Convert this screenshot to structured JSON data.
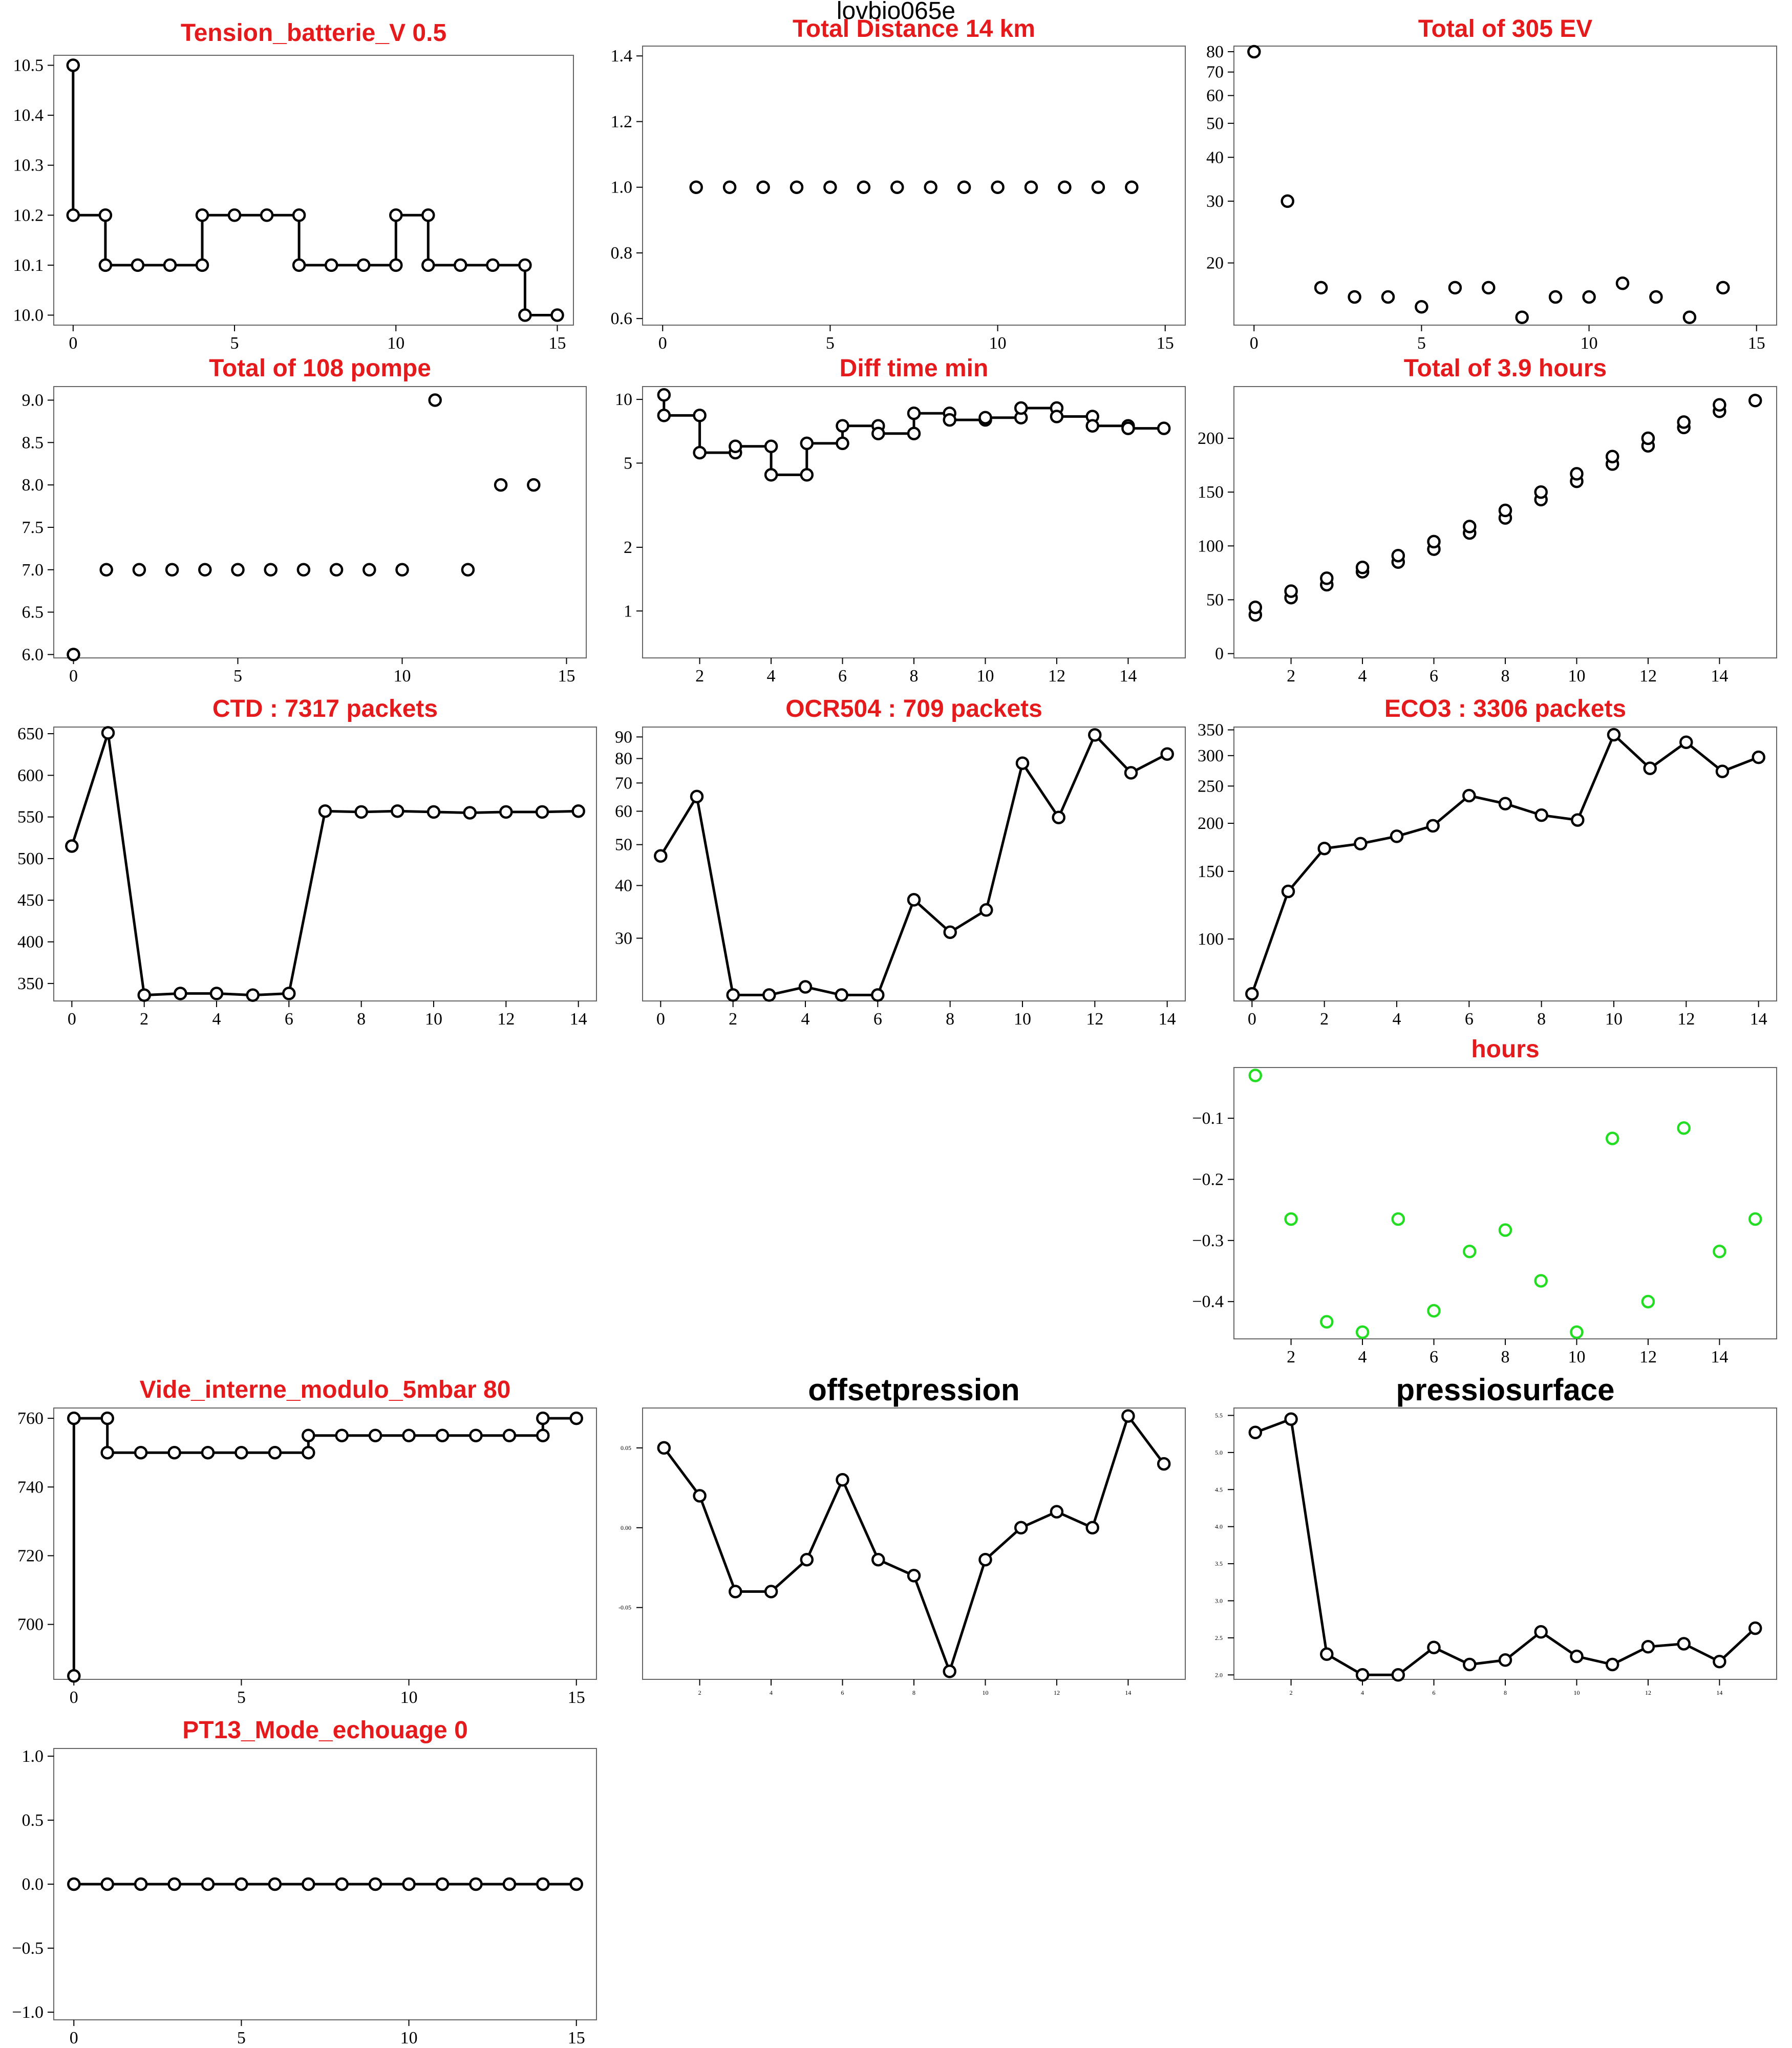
{
  "page_title": "lovbio065e",
  "colors": {
    "title": "#e41a1c",
    "hours_points": "#22dd22",
    "lines": "#000000"
  },
  "chart_data": [
    {
      "id": "tension",
      "type": "line",
      "step": true,
      "title": "Tension_batterie_V 0.5",
      "title_color": "red",
      "x": [
        0,
        0,
        1,
        1,
        2,
        3,
        4,
        4,
        5,
        6,
        7,
        7,
        8,
        9,
        10,
        10,
        11,
        11,
        12,
        13,
        14,
        14,
        15
      ],
      "y": [
        10.5,
        10.2,
        10.2,
        10.1,
        10.1,
        10.1,
        10.1,
        10.2,
        10.2,
        10.2,
        10.2,
        10.1,
        10.1,
        10.1,
        10.1,
        10.2,
        10.2,
        10.1,
        10.1,
        10.1,
        10.1,
        10.0,
        10.0
      ],
      "xlim": [
        -0.6,
        15.5
      ],
      "ylim": [
        9.98,
        10.52
      ],
      "xticks": [
        0,
        5,
        10,
        15
      ],
      "yticks": [
        10.0,
        10.1,
        10.2,
        10.3,
        10.4,
        10.5
      ],
      "yticklabels": [
        "10.0",
        "10.1",
        "10.2",
        "10.3",
        "10.4",
        "10.5"
      ]
    },
    {
      "id": "distance",
      "type": "scatter",
      "title": "Total Distance  14  km",
      "title_color": "red",
      "x": [
        1,
        2,
        3,
        4,
        5,
        6,
        7,
        8,
        9,
        10,
        11,
        12,
        13,
        14
      ],
      "y": [
        1,
        1,
        1,
        1,
        1,
        1,
        1,
        1,
        1,
        1,
        1,
        1,
        1,
        1
      ],
      "xlim": [
        -0.6,
        15.6
      ],
      "ylim": [
        0.58,
        1.43
      ],
      "xticks": [
        0,
        5,
        10,
        15
      ],
      "yticks": [
        0.6,
        0.8,
        1.0,
        1.2,
        1.4
      ],
      "yticklabels": [
        "0.6",
        "0.8",
        "1.0",
        "1.2",
        "1.4"
      ]
    },
    {
      "id": "ev",
      "type": "scatter",
      "log_y": true,
      "title": "Total of  305  EV",
      "title_color": "red",
      "x": [
        0,
        1,
        2,
        3,
        4,
        5,
        6,
        7,
        8,
        9,
        10,
        11,
        12,
        13,
        14
      ],
      "y": [
        80,
        30,
        17,
        16,
        16,
        15,
        17,
        17,
        14,
        16,
        16,
        17.5,
        16,
        14,
        17
      ],
      "xlim": [
        -0.6,
        15.6
      ],
      "ylim": [
        13.3,
        83
      ],
      "xticks": [
        0,
        5,
        10,
        15
      ],
      "yticks": [
        20,
        30,
        40,
        50,
        60,
        70,
        80
      ],
      "yticklabels": [
        "20",
        "30",
        "40",
        "50",
        "60",
        "70",
        "80"
      ]
    },
    {
      "id": "pompe",
      "type": "scatter",
      "title": "Total of  108  pompe",
      "title_color": "red",
      "x": [
        0,
        1,
        2,
        3,
        4,
        5,
        6,
        7,
        8,
        9,
        10,
        11,
        12,
        13,
        14
      ],
      "y": [
        6,
        7,
        7,
        7,
        7,
        7,
        7,
        7,
        7,
        7,
        7,
        9,
        7,
        8,
        8
      ],
      "xlim": [
        -0.6,
        15.6
      ],
      "ylim": [
        5.96,
        9.16
      ],
      "xticks": [
        0,
        5,
        10,
        15
      ],
      "yticks": [
        6.0,
        6.5,
        7.0,
        7.5,
        8.0,
        8.5,
        9.0
      ],
      "yticklabels": [
        "6.0",
        "6.5",
        "7.0",
        "7.5",
        "8.0",
        "8.5",
        "9.0"
      ]
    },
    {
      "id": "difftime",
      "type": "line",
      "step": true,
      "log_y": true,
      "title": "Diff time min",
      "title_color": "red",
      "x": [
        1,
        1,
        2,
        2,
        3,
        3,
        4,
        4,
        5,
        5,
        6,
        6,
        7,
        7,
        8,
        8,
        9,
        9,
        10,
        10,
        11,
        11,
        12,
        12,
        13,
        13,
        14,
        14,
        15
      ],
      "y": [
        10.5,
        8.4,
        8.4,
        5.6,
        5.6,
        6.0,
        6.0,
        4.4,
        4.4,
        6.2,
        6.2,
        7.5,
        7.5,
        6.9,
        6.9,
        8.6,
        8.6,
        8.0,
        8.0,
        8.2,
        8.2,
        9.1,
        9.1,
        8.3,
        8.3,
        7.5,
        7.5,
        7.3,
        7.3
      ],
      "xlim": [
        0.4,
        15.6
      ],
      "ylim": [
        0.6,
        11.5
      ],
      "xticks": [
        2,
        4,
        6,
        8,
        10,
        12,
        14
      ],
      "yticks": [
        1,
        2,
        5,
        10
      ],
      "yticklabels": [
        "1",
        "2",
        "5",
        "10"
      ]
    },
    {
      "id": "hours_total",
      "type": "scatter",
      "title": "Total of  3.9  hours",
      "title_color": "red",
      "x": [
        1,
        1,
        2,
        2,
        3,
        3,
        4,
        4,
        5,
        5,
        6,
        6,
        7,
        7,
        8,
        8,
        9,
        9,
        10,
        10,
        11,
        11,
        12,
        12,
        13,
        13,
        14,
        14,
        15
      ],
      "y": [
        36,
        43,
        52,
        58,
        64,
        70,
        76,
        80,
        85,
        91,
        97,
        104,
        112,
        118,
        126,
        133,
        143,
        150,
        160,
        167,
        176,
        183,
        193,
        200,
        210,
        215,
        225,
        231,
        235
      ],
      "xlim": [
        0.4,
        15.6
      ],
      "ylim": [
        -4,
        248
      ],
      "xticks": [
        2,
        4,
        6,
        8,
        10,
        12,
        14
      ],
      "yticks": [
        0,
        50,
        100,
        150,
        200
      ],
      "yticklabels": [
        "0",
        "50",
        "100",
        "150",
        "200"
      ]
    },
    {
      "id": "ctd",
      "type": "line",
      "title": "CTD  : 7317  packets",
      "title_color": "red",
      "x": [
        0,
        1,
        2,
        3,
        4,
        5,
        6,
        7,
        8,
        9,
        10,
        11,
        12,
        13,
        14
      ],
      "y": [
        515,
        651,
        336,
        338,
        338,
        336,
        338,
        557,
        556,
        557,
        556,
        555,
        556,
        556,
        557
      ],
      "xlim": [
        -0.5,
        14.5
      ],
      "ylim": [
        329,
        658
      ],
      "xticks": [
        0,
        2,
        4,
        6,
        8,
        10,
        12,
        14
      ],
      "yticks": [
        350,
        400,
        450,
        500,
        550,
        600,
        650
      ],
      "yticklabels": [
        "350",
        "400",
        "450",
        "500",
        "550",
        "600",
        "650"
      ]
    },
    {
      "id": "ocr504",
      "type": "line",
      "log_y": true,
      "title": "OCR504  : 709  packets",
      "title_color": "red",
      "x": [
        0,
        1,
        2,
        3,
        4,
        5,
        6,
        7,
        8,
        9,
        10,
        11,
        12,
        13,
        14
      ],
      "y": [
        47,
        65,
        22,
        22,
        23,
        22,
        22,
        37,
        31,
        35,
        78,
        58,
        91,
        74,
        82
      ],
      "xlim": [
        -0.5,
        14.5
      ],
      "ylim": [
        21.3,
        95
      ],
      "xticks": [
        0,
        2,
        4,
        6,
        8,
        10,
        12,
        14
      ],
      "yticks": [
        30,
        40,
        50,
        60,
        70,
        80,
        90
      ],
      "yticklabels": [
        "30",
        "40",
        "50",
        "60",
        "70",
        "80",
        "90"
      ]
    },
    {
      "id": "eco3",
      "type": "line",
      "log_y": true,
      "title": "ECO3  : 3306  packets",
      "title_color": "red",
      "x": [
        0,
        1,
        2,
        3,
        4,
        5,
        6,
        7,
        8,
        9,
        10,
        11,
        12,
        13,
        14
      ],
      "y": [
        72,
        133,
        172,
        177,
        185,
        197,
        236,
        225,
        210,
        204,
        340,
        278,
        325,
        273,
        297
      ],
      "xlim": [
        -0.5,
        14.5
      ],
      "ylim": [
        69,
        356
      ],
      "xticks": [
        0,
        2,
        4,
        6,
        8,
        10,
        12,
        14
      ],
      "yticks": [
        100,
        150,
        200,
        250,
        300,
        350
      ],
      "yticklabels": [
        "100",
        "150",
        "200",
        "250",
        "300",
        "350"
      ]
    },
    {
      "id": "hours_diff",
      "type": "scatter",
      "title": "hours",
      "title_color": "red",
      "point_color": "#22dd22",
      "x": [
        1,
        2,
        3,
        4,
        5,
        6,
        7,
        8,
        9,
        10,
        11,
        12,
        13,
        14,
        15
      ],
      "y": [
        -0.03,
        -0.265,
        -0.433,
        -0.45,
        -0.265,
        -0.415,
        -0.318,
        -0.283,
        -0.366,
        -0.45,
        -0.133,
        -0.4,
        -0.116,
        -0.318,
        -0.265
      ],
      "xlim": [
        0.4,
        15.6
      ],
      "ylim": [
        -0.461,
        -0.017
      ],
      "xticks": [
        2,
        4,
        6,
        8,
        10,
        12,
        14
      ],
      "yticks": [
        -0.4,
        -0.3,
        -0.2,
        -0.1
      ],
      "yticklabels": [
        "−0.4",
        "−0.3",
        "−0.2",
        "−0.1"
      ]
    },
    {
      "id": "vide",
      "type": "line",
      "step": true,
      "title": "Vide_interne_modulo_5mbar 80",
      "title_color": "red",
      "x": [
        0,
        0,
        1,
        1,
        2,
        3,
        4,
        5,
        6,
        7,
        7,
        8,
        9,
        10,
        11,
        12,
        13,
        14,
        14,
        15
      ],
      "y": [
        685,
        760,
        760,
        750,
        750,
        750,
        750,
        750,
        750,
        750,
        755,
        755,
        755,
        755,
        755,
        755,
        755,
        755,
        760,
        760
      ],
      "xlim": [
        -0.6,
        15.6
      ],
      "ylim": [
        684,
        763
      ],
      "xticks": [
        0,
        5,
        10,
        15
      ],
      "yticks": [
        700,
        720,
        740,
        760
      ],
      "yticklabels": [
        "700",
        "720",
        "740",
        "760"
      ]
    },
    {
      "id": "offsetpression",
      "type": "line",
      "title": "offsetpression",
      "title_color": "black",
      "x": [
        1,
        2,
        3,
        4,
        5,
        6,
        7,
        8,
        9,
        10,
        11,
        12,
        13,
        14,
        15
      ],
      "y": [
        0.05,
        0.02,
        -0.04,
        -0.04,
        -0.02,
        0.03,
        -0.02,
        -0.03,
        -0.09,
        -0.02,
        0.0,
        0.01,
        0.0,
        0.07,
        0.04
      ],
      "xlim": [
        0.4,
        15.6
      ],
      "ylim": [
        -0.095,
        0.075
      ],
      "xticks": [
        2,
        4,
        6,
        8,
        10,
        12,
        14
      ],
      "yticks": [
        -0.05,
        0.0,
        0.05
      ],
      "yticklabels": [
        "-0.05",
        "0.00",
        "0.05"
      ],
      "small_ticks": true
    },
    {
      "id": "pressiosurface",
      "type": "line",
      "title": "pressiosurface",
      "title_color": "black",
      "x": [
        1,
        2,
        3,
        4,
        5,
        6,
        7,
        8,
        9,
        10,
        11,
        12,
        13,
        14,
        15
      ],
      "y": [
        5.27,
        5.45,
        2.28,
        2.0,
        2.0,
        2.37,
        2.14,
        2.2,
        2.58,
        2.25,
        2.14,
        2.38,
        2.42,
        2.18,
        2.63
      ],
      "xlim": [
        0.4,
        15.6
      ],
      "ylim": [
        1.94,
        5.6
      ],
      "xticks": [
        2,
        4,
        6,
        8,
        10,
        12,
        14
      ],
      "yticks": [
        2.0,
        2.5,
        3.0,
        3.5,
        4.0,
        4.5,
        5.0,
        5.5
      ],
      "yticklabels": [
        "2.0",
        "2.5",
        "3.0",
        "3.5",
        "4.0",
        "4.5",
        "5.0",
        "5.5"
      ],
      "small_ticks": true
    },
    {
      "id": "pt13",
      "type": "line",
      "title": "PT13_Mode_echouage  0",
      "title_color": "red",
      "x": [
        0,
        1,
        2,
        3,
        4,
        5,
        6,
        7,
        8,
        9,
        10,
        11,
        12,
        13,
        14,
        15
      ],
      "y": [
        0,
        0,
        0,
        0,
        0,
        0,
        0,
        0,
        0,
        0,
        0,
        0,
        0,
        0,
        0,
        0
      ],
      "xlim": [
        -0.6,
        15.6
      ],
      "ylim": [
        -1.06,
        1.06
      ],
      "xticks": [
        0,
        5,
        10,
        15
      ],
      "yticks": [
        -1.0,
        -0.5,
        0.0,
        0.5,
        1.0
      ],
      "yticklabels": [
        "−1.0",
        "−0.5",
        "0.0",
        "0.5",
        "1.0"
      ]
    }
  ]
}
